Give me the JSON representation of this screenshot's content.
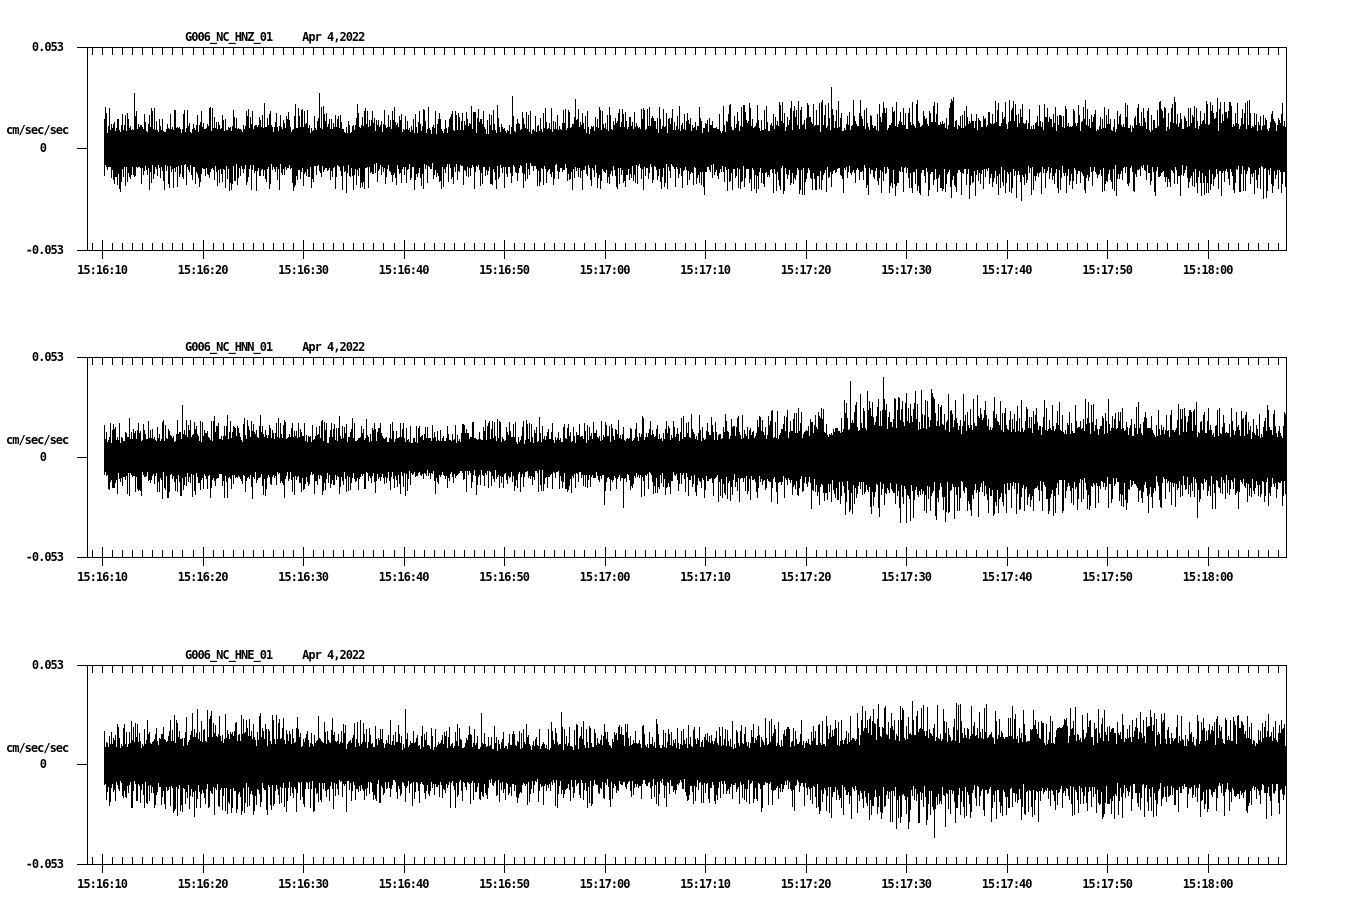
{
  "figure": {
    "background": "#ffffff",
    "foreground": "#000000",
    "description": "Three-channel strong-motion seismogram noise display, black traces on white"
  },
  "chart_data": [
    {
      "type": "line",
      "kind": "seismogram-min-max-trace",
      "title": "G006_NC_HNZ_01",
      "date": "Apr 4,2022",
      "ylabel": "cm/sec/sec",
      "y_ticks": {
        "max": "0.053",
        "zero": "0",
        "min": "-0.053"
      },
      "ylim": [
        -0.053,
        0.053
      ],
      "x_ticks": [
        "15:16:10",
        "15:16:20",
        "15:16:30",
        "15:16:40",
        "15:16:50",
        "15:17:00",
        "15:17:10",
        "15:17:20",
        "15:17:30",
        "15:17:40",
        "15:17:50",
        "15:18:00"
      ],
      "x_start_s": 8.5,
      "x_end_s": 127.8,
      "minor_tick_s": 1,
      "major_tick_s": 10,
      "trace_start_s": 10.2,
      "envelope_t_s": [
        10,
        20,
        30,
        40,
        50,
        60,
        70,
        80,
        90,
        100,
        110,
        120,
        128
      ],
      "envelope_peak": [
        0.0235,
        0.0235,
        0.024,
        0.0225,
        0.0225,
        0.0235,
        0.024,
        0.026,
        0.027,
        0.0285,
        0.025,
        0.027,
        0.026
      ],
      "core_fraction": 0.44,
      "seed": 101
    },
    {
      "type": "line",
      "kind": "seismogram-min-max-trace",
      "title": "G006_NC_HNN_01",
      "date": "Apr 4,2022",
      "ylabel": "cm/sec/sec",
      "y_ticks": {
        "max": "0.053",
        "zero": "0",
        "min": "-0.053"
      },
      "ylim": [
        -0.053,
        0.053
      ],
      "x_ticks": [
        "15:16:10",
        "15:16:20",
        "15:16:30",
        "15:16:40",
        "15:16:50",
        "15:17:00",
        "15:17:10",
        "15:17:20",
        "15:17:30",
        "15:17:40",
        "15:17:50",
        "15:18:00"
      ],
      "x_start_s": 8.5,
      "x_end_s": 127.8,
      "minor_tick_s": 1,
      "major_tick_s": 10,
      "trace_start_s": 10.2,
      "envelope_t_s": [
        10,
        20,
        30,
        40,
        50,
        60,
        70,
        80,
        90,
        100,
        110,
        120,
        128
      ],
      "envelope_peak": [
        0.02,
        0.0235,
        0.022,
        0.021,
        0.02,
        0.022,
        0.0235,
        0.0285,
        0.039,
        0.034,
        0.031,
        0.0285,
        0.028
      ],
      "core_fraction": 0.46,
      "seed": 202
    },
    {
      "type": "line",
      "kind": "seismogram-min-max-trace",
      "title": "G006_NC_HNE_01",
      "date": "Apr 4,2022",
      "ylabel": "cm/sec/sec",
      "y_ticks": {
        "max": "0.053",
        "zero": "0",
        "min": "-0.053"
      },
      "ylim": [
        -0.053,
        0.053
      ],
      "x_ticks": [
        "15:16:10",
        "15:16:20",
        "15:16:30",
        "15:16:40",
        "15:16:50",
        "15:17:00",
        "15:17:10",
        "15:17:20",
        "15:17:30",
        "15:17:40",
        "15:17:50",
        "15:18:00"
      ],
      "x_start_s": 8.5,
      "x_end_s": 127.8,
      "minor_tick_s": 1,
      "major_tick_s": 10,
      "trace_start_s": 10.2,
      "envelope_t_s": [
        10,
        20,
        30,
        40,
        50,
        60,
        70,
        80,
        90,
        100,
        110,
        120,
        128
      ],
      "envelope_peak": [
        0.022,
        0.031,
        0.027,
        0.024,
        0.022,
        0.0235,
        0.024,
        0.026,
        0.0365,
        0.032,
        0.031,
        0.0285,
        0.03
      ],
      "core_fraction": 0.44,
      "seed": 303
    }
  ]
}
